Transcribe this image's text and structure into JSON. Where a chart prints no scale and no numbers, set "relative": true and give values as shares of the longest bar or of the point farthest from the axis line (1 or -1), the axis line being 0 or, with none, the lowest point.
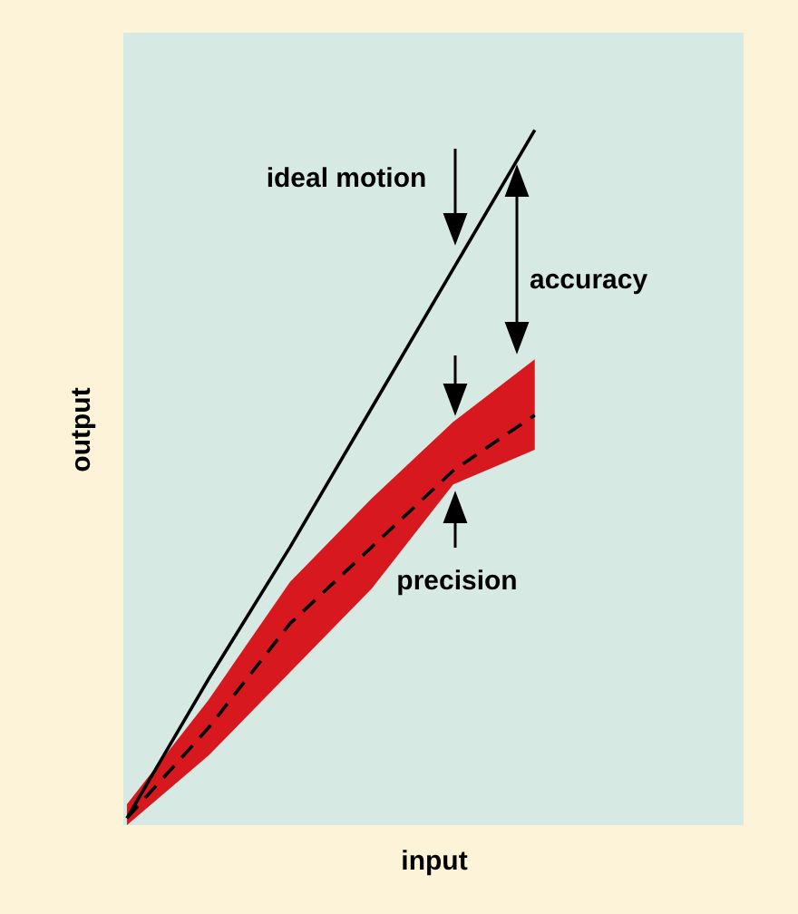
{
  "chart_data": {
    "type": "line",
    "relative": true,
    "xlabel": "input",
    "ylabel": "output",
    "categories": [
      null,
      null,
      null,
      null,
      null,
      null
    ],
    "series": [
      {
        "color": "#000000",
        "values": [
          0.01,
          0.21,
          0.4,
          0.6,
          0.8,
          1.0
        ]
      },
      {
        "color": "#000000",
        "colors": [
          "#d7191f",
          "#d7191f",
          "#d7191f",
          "#d7191f",
          "#d7191f",
          "#d7191f"
        ],
        "line_style": "dashed",
        "values": [
          0.01,
          0.14,
          0.29,
          0.4,
          0.51,
          0.59
        ],
        "lower": [
          0,
          0.1,
          0.22,
          0.34,
          0.49,
          0.54
        ],
        "upper": [
          0.03,
          0.18,
          0.35,
          0.47,
          0.58,
          0.67
        ]
      }
    ],
    "annotations": [
      "ideal motion",
      "accuracy",
      "precision"
    ]
  }
}
